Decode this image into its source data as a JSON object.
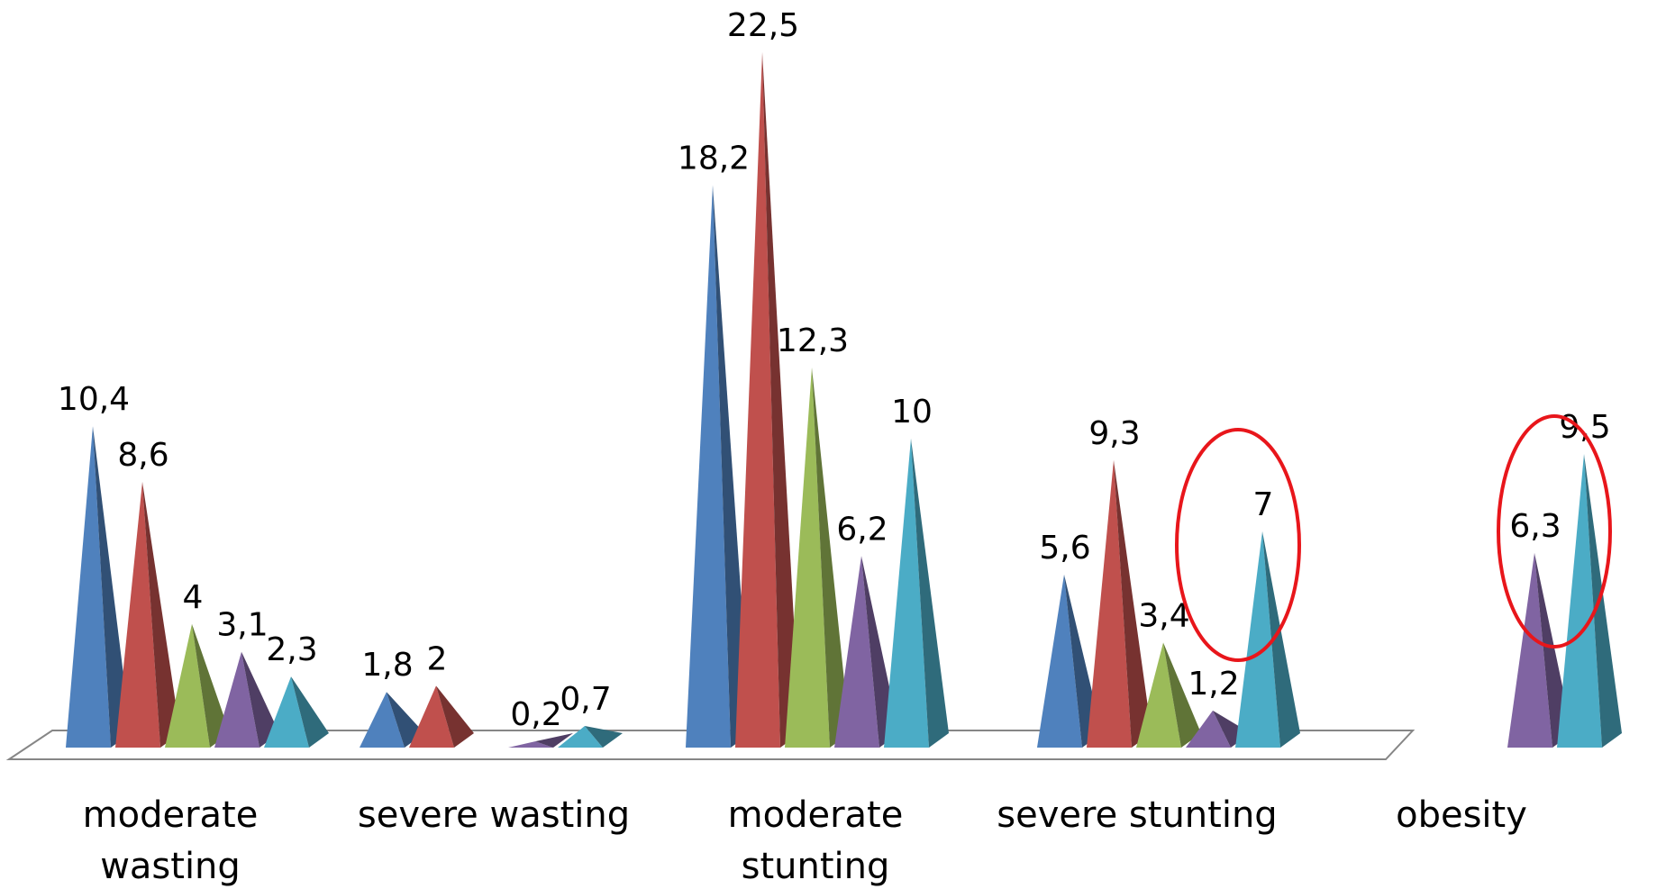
{
  "chart_data": {
    "type": "bar",
    "style": "3d-pyramid",
    "categories": [
      [
        "moderate",
        "wasting"
      ],
      [
        "severe wasting"
      ],
      [
        "moderate",
        "stunting"
      ],
      [
        "severe stunting"
      ],
      [
        "obesity"
      ]
    ],
    "series": [
      {
        "color": "#4f81bd",
        "values": [
          10.4,
          1.8,
          18.2,
          5.6,
          null
        ]
      },
      {
        "color": "#c0504d",
        "values": [
          8.6,
          2,
          22.5,
          9.3,
          null
        ]
      },
      {
        "color": "#9bbb59",
        "values": [
          4,
          null,
          12.3,
          3.4,
          null
        ]
      },
      {
        "color": "#8064a2",
        "values": [
          3.1,
          0.2,
          6.2,
          1.2,
          6.3
        ]
      },
      {
        "color": "#4bacc6",
        "values": [
          2.3,
          0.7,
          10,
          7,
          9.5
        ]
      }
    ],
    "data_labels": [
      [
        "10,4",
        "1,8",
        "18,2",
        "5,6",
        ""
      ],
      [
        "8,6",
        "2",
        "22,5",
        "9,3",
        ""
      ],
      [
        "4",
        "",
        "12,3",
        "3,4",
        ""
      ],
      [
        "3,1",
        "0,2",
        "6,2",
        "1,2",
        "6,3"
      ],
      [
        "2,3",
        "0,7",
        "10",
        "7",
        "9,5"
      ]
    ],
    "ylim": [
      0,
      22.5
    ],
    "grid": false,
    "legend": "none",
    "annotations": {
      "highlight_color": "#e8161b",
      "circled": [
        {
          "category_index": 3,
          "series_index": 4
        },
        {
          "category_index": 4,
          "series_index": 3
        },
        {
          "category_index": 4,
          "series_index": 4
        }
      ]
    }
  }
}
